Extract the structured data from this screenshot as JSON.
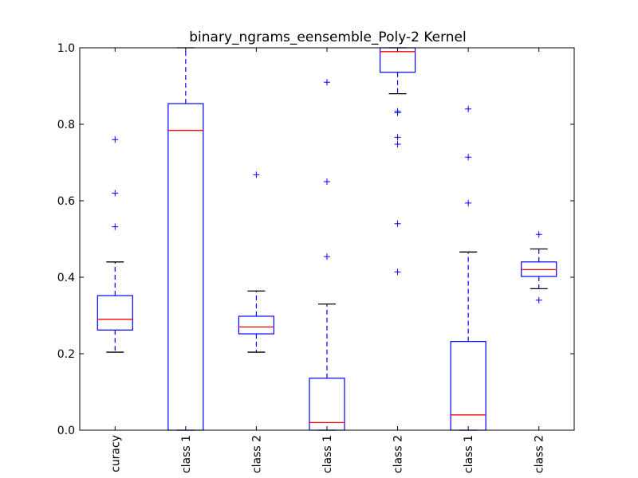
{
  "chart_data": {
    "type": "box",
    "title": "binary_ngrams_eensemble_Poly-2 Kernel",
    "ylim": [
      0.0,
      1.0
    ],
    "yticks": [
      0.0,
      0.2,
      0.4,
      0.6,
      0.8,
      1.0
    ],
    "ytick_labels": [
      "0.0",
      "0.2",
      "0.4",
      "0.6",
      "0.8",
      "1.0"
    ],
    "categories": [
      "curacy",
      "class 1",
      "class 2",
      "class 1",
      "class 2",
      "class 1",
      "class 2"
    ],
    "series": [
      {
        "q1": 0.262,
        "median": 0.29,
        "q3": 0.352,
        "whisker_low": 0.204,
        "whisker_high": 0.44,
        "fliers": [
          0.532,
          0.62,
          0.76
        ]
      },
      {
        "q1": 0.0,
        "median": 0.784,
        "q3": 0.854,
        "whisker_low": 0.0,
        "whisker_high": 1.0,
        "fliers": []
      },
      {
        "q1": 0.252,
        "median": 0.27,
        "q3": 0.298,
        "whisker_low": 0.204,
        "whisker_high": 0.364,
        "fliers": [
          0.668
        ]
      },
      {
        "q1": 0.0,
        "median": 0.02,
        "q3": 0.136,
        "whisker_low": 0.0,
        "whisker_high": 0.33,
        "fliers": [
          0.454,
          0.65,
          0.91
        ]
      },
      {
        "q1": 0.936,
        "median": 0.99,
        "q3": 1.0,
        "whisker_low": 0.88,
        "whisker_high": 1.0,
        "fliers": [
          0.414,
          0.54,
          0.748,
          0.766,
          0.83,
          0.834
        ]
      },
      {
        "q1": 0.0,
        "median": 0.04,
        "q3": 0.232,
        "whisker_low": 0.0,
        "whisker_high": 0.466,
        "fliers": [
          0.594,
          0.714,
          0.84
        ]
      },
      {
        "q1": 0.402,
        "median": 0.42,
        "q3": 0.44,
        "whisker_low": 0.37,
        "whisker_high": 0.474,
        "fliers": [
          0.34,
          0.512
        ]
      }
    ],
    "grid": false,
    "legend": "none"
  }
}
